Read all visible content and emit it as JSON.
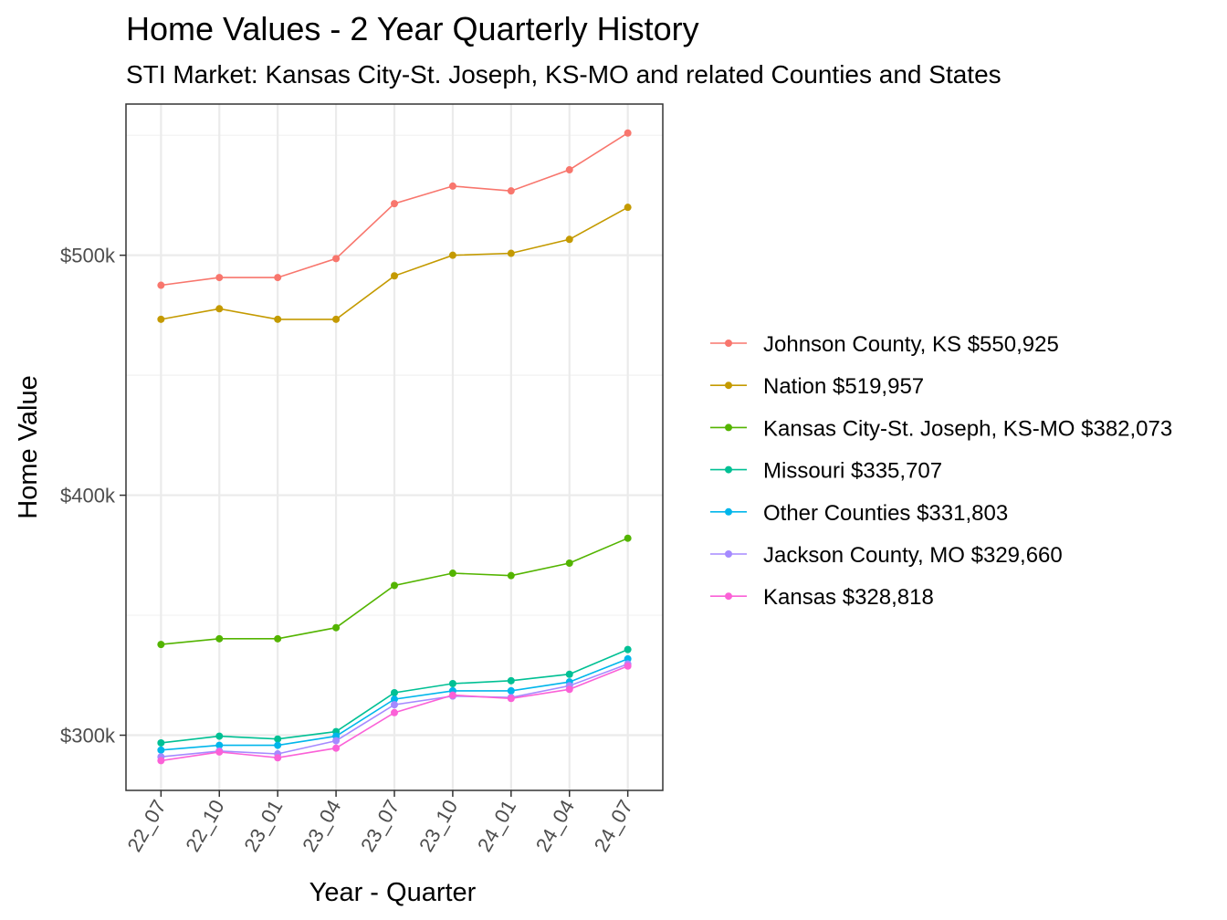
{
  "chart_data": {
    "type": "line",
    "title": "Home Values - 2 Year Quarterly History",
    "subtitle": "STI Market: Kansas City-St. Joseph, KS-MO and related Counties and States",
    "xlabel": "Year - Quarter",
    "ylabel": "Home Value",
    "categories": [
      "22_07",
      "22_10",
      "23_01",
      "23_04",
      "23_07",
      "23_10",
      "24_01",
      "24_04",
      "24_07"
    ],
    "ylim": [
      277000,
      563000
    ],
    "yticks": [
      300000,
      400000,
      500000
    ],
    "ytick_labels": [
      "$300k",
      "$400k",
      "$500k"
    ],
    "grid": true,
    "legend_position": "right",
    "series": [
      {
        "name": "Johnson County, KS $550,925",
        "color": "#F8766D",
        "values": [
          487500,
          490700,
          490700,
          498600,
          521500,
          528800,
          526800,
          535600,
          550925
        ]
      },
      {
        "name": "Nation $519,957",
        "color": "#C49A00",
        "values": [
          473300,
          477700,
          473300,
          473300,
          491400,
          500000,
          500800,
          506600,
          519957
        ]
      },
      {
        "name": "Kansas City-St. Joseph, KS-MO $382,073",
        "color": "#53B400",
        "values": [
          337800,
          340200,
          340200,
          344800,
          362400,
          367500,
          366500,
          371700,
          382073
        ]
      },
      {
        "name": "Missouri $335,707",
        "color": "#00C094",
        "values": [
          296800,
          299600,
          298400,
          301500,
          317700,
          321500,
          322700,
          325400,
          335707
        ]
      },
      {
        "name": "Other Counties $331,803",
        "color": "#00B6EB",
        "values": [
          293800,
          295800,
          295800,
          299600,
          315000,
          318500,
          318500,
          322200,
          331803
        ]
      },
      {
        "name": "Jackson County, MO $329,660",
        "color": "#A58AFF",
        "values": [
          291000,
          293400,
          292200,
          297700,
          312700,
          316300,
          315700,
          320600,
          329660
        ]
      },
      {
        "name": "Kansas $328,818",
        "color": "#FB61D7",
        "values": [
          289400,
          293000,
          290600,
          294600,
          309400,
          316700,
          315300,
          319100,
          328818
        ]
      }
    ]
  }
}
